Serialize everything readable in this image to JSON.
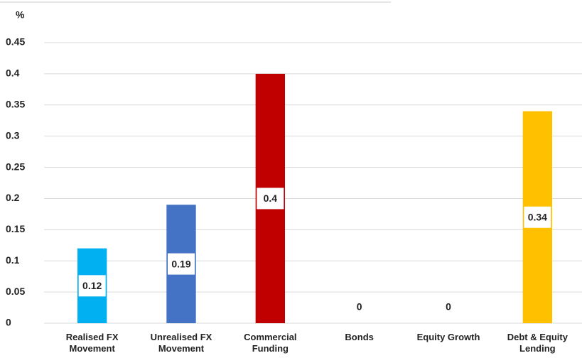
{
  "chart_data": {
    "type": "bar",
    "y_label": "%",
    "categories": [
      "Realised FX Movement",
      "Unrealised FX Movement",
      "Commercial Funding",
      "Bonds",
      "Equity Growth",
      "Debt & Equity Lending"
    ],
    "values": [
      0.12,
      0.19,
      0.4,
      0,
      0,
      0.34
    ],
    "colors": [
      "#00b0f0",
      "#4472c4",
      "#c00000",
      null,
      null,
      "#ffc000"
    ],
    "ylim": [
      0,
      0.45
    ],
    "yticks": [
      0,
      0.05,
      0.1,
      0.15,
      0.2,
      0.25,
      0.3,
      0.35,
      0.4,
      0.45
    ],
    "grid": true
  }
}
